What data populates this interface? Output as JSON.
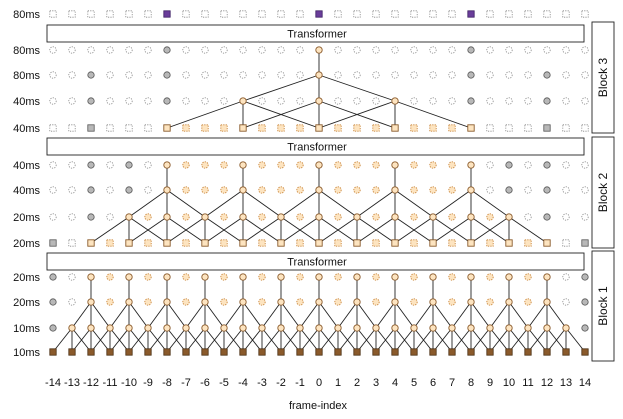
{
  "frame_indices": [
    -14,
    -13,
    -12,
    -11,
    -10,
    -9,
    -8,
    -7,
    -6,
    -5,
    -4,
    -3,
    -2,
    -1,
    0,
    1,
    2,
    3,
    4,
    5,
    6,
    7,
    8,
    9,
    10,
    11,
    12,
    13,
    14
  ],
  "xlabel": "frame-index",
  "top_row": {
    "label": "80ms",
    "highlighted": [
      -8,
      0,
      8
    ]
  },
  "transformer_label": "Transformer",
  "blocks": [
    {
      "name": "Block 3",
      "rows": [
        {
          "label": "80ms",
          "shape": "circle",
          "active": [
            0
          ],
          "gray": [
            -8,
            8
          ]
        },
        {
          "label": "80ms",
          "shape": "circle",
          "active": [
            0
          ],
          "gray": [
            -12,
            -8,
            8,
            12
          ]
        },
        {
          "label": "40ms",
          "shape": "circle",
          "active": [
            -4,
            0,
            4
          ],
          "gray": [
            -12,
            -8,
            8,
            12
          ]
        },
        {
          "label": "40ms",
          "shape": "square",
          "active": [
            -8,
            -4,
            0,
            4,
            8
          ],
          "dashed": [
            -7,
            -6,
            -5,
            -3,
            -2,
            -1,
            1,
            2,
            3,
            5,
            6,
            7
          ],
          "gray": [
            -12,
            12
          ]
        }
      ]
    },
    {
      "name": "Block 2",
      "rows": [
        {
          "label": "40ms",
          "shape": "circle",
          "active": [
            -8,
            -4,
            0,
            4,
            8
          ],
          "dashed": [
            -7,
            -6,
            -5,
            -3,
            -2,
            -1,
            1,
            2,
            3,
            5,
            6,
            7
          ],
          "gray": [
            -12,
            -10,
            10,
            12
          ]
        },
        {
          "label": "40ms",
          "shape": "circle",
          "active": [
            -8,
            -4,
            0,
            4,
            8
          ],
          "dashed": [
            -7,
            -6,
            -5,
            -3,
            -2,
            -1,
            1,
            2,
            3,
            5,
            6,
            7
          ],
          "gray": [
            -12,
            -10,
            10,
            12
          ]
        },
        {
          "label": "20ms",
          "shape": "circle",
          "active": [
            -10,
            -8,
            -6,
            -4,
            -2,
            0,
            2,
            4,
            6,
            8,
            10
          ],
          "dashed": [
            -9,
            -7,
            -5,
            -3,
            -1,
            1,
            3,
            5,
            7,
            9
          ],
          "gray": [
            -12,
            12
          ]
        },
        {
          "label": "20ms",
          "shape": "square",
          "active": [
            -12,
            -10,
            -8,
            -6,
            -4,
            -2,
            0,
            2,
            4,
            6,
            8,
            10,
            12
          ],
          "dashed": [
            -11,
            -9,
            -7,
            -5,
            -3,
            -1,
            1,
            3,
            5,
            7,
            9,
            11
          ],
          "gray": [
            -14,
            14
          ]
        }
      ]
    },
    {
      "name": "Block 1",
      "rows": [
        {
          "label": "20ms",
          "shape": "circle",
          "active": [
            -12,
            -10,
            -8,
            -6,
            -4,
            -2,
            0,
            2,
            4,
            6,
            8,
            10,
            12
          ],
          "dashed": [
            -11,
            -9,
            -7,
            -5,
            -3,
            -1,
            1,
            3,
            5,
            7,
            9,
            11
          ],
          "gray": [
            -14,
            14
          ]
        },
        {
          "label": "20ms",
          "shape": "circle",
          "active": [
            -12,
            -10,
            -8,
            -6,
            -4,
            -2,
            0,
            2,
            4,
            6,
            8,
            10,
            12
          ],
          "dashed": [
            -11,
            -9,
            -7,
            -5,
            -3,
            -1,
            1,
            3,
            5,
            7,
            9,
            11
          ],
          "gray": [
            -14,
            14
          ]
        },
        {
          "label": "10ms",
          "shape": "circle",
          "active": [
            -13,
            -12,
            -11,
            -10,
            -9,
            -8,
            -7,
            -6,
            -5,
            -4,
            -3,
            -2,
            -1,
            0,
            1,
            2,
            3,
            4,
            5,
            6,
            7,
            8,
            9,
            10,
            11,
            12,
            13
          ],
          "gray": [
            -14,
            14
          ]
        },
        {
          "label": "10ms",
          "shape": "square",
          "filled_all": true
        }
      ]
    }
  ],
  "colors": {
    "active_fill": "#fde4c0",
    "active_stroke": "#8a5a2b",
    "input_fill": "#8a5a2b",
    "input_stroke": "#4a2e12",
    "highlight_fill": "#6a3d9a",
    "gray_fill": "#b8b8b8",
    "gray_stroke": "#555555",
    "dashed_stroke": "#c9863b",
    "inactive_stroke": "#888888"
  }
}
